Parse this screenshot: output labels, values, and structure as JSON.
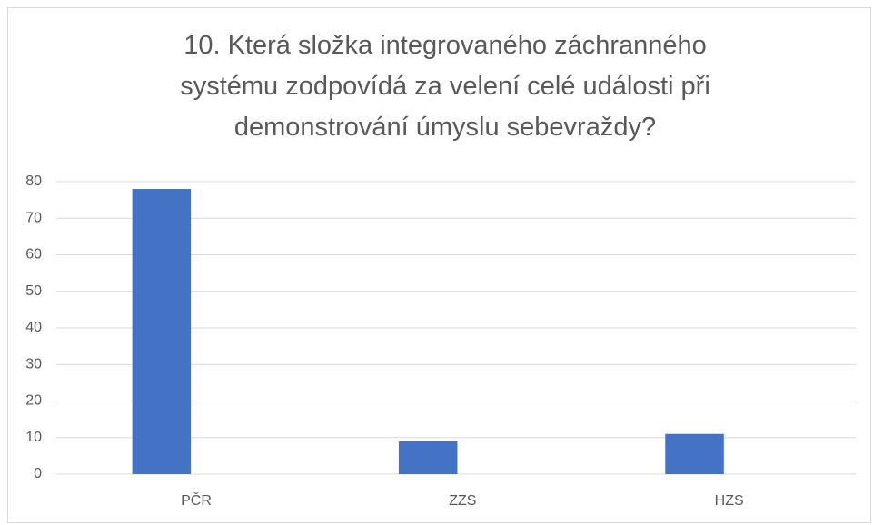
{
  "chart_data": {
    "type": "bar",
    "title": "10. Která složka integrovaného záchranného systému zodpovídá za velení celé události při demonstrování úmyslu sebevraždy?",
    "categories": [
      "PČR",
      "ZZS",
      "HZS"
    ],
    "values": [
      78,
      9,
      11
    ],
    "color": "#4472c4",
    "ylim": [
      0,
      80
    ],
    "yticks": [
      0,
      10,
      20,
      30,
      40,
      50,
      60,
      70,
      80
    ],
    "grid": true
  }
}
